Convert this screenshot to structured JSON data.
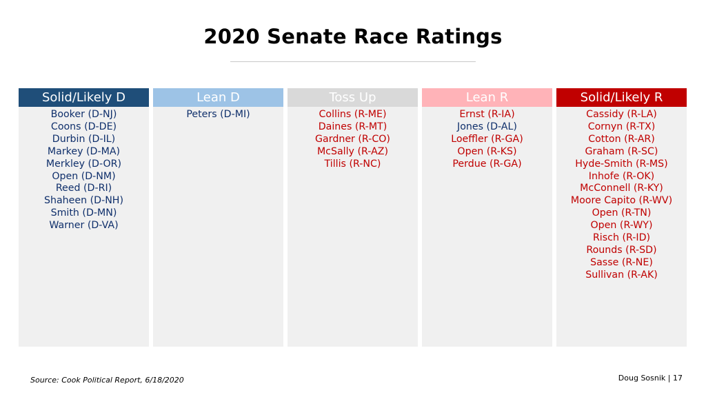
{
  "title": "2020 Senate Race Ratings",
  "colors": {
    "solid_d": "#1f4e79",
    "lean_d": "#9dc3e6",
    "toss_up": "#d9d9d9",
    "lean_r": "#ffb3b8",
    "solid_r": "#c00000",
    "dem_text": "#0f2f6b",
    "rep_text": "#c00000",
    "column_bg": "#f0f0f0"
  },
  "columns": [
    {
      "header": "Solid/Likely D",
      "races": [
        {
          "name": "Booker (D-NJ)",
          "party": "D"
        },
        {
          "name": "Coons (D-DE)",
          "party": "D"
        },
        {
          "name": "Durbin (D-IL)",
          "party": "D"
        },
        {
          "name": "Markey (D-MA)",
          "party": "D"
        },
        {
          "name": "Merkley (D-OR)",
          "party": "D"
        },
        {
          "name": "Open (D-NM)",
          "party": "D"
        },
        {
          "name": "Reed (D-RI)",
          "party": "D"
        },
        {
          "name": "Shaheen (D-NH)",
          "party": "D"
        },
        {
          "name": "Smith (D-MN)",
          "party": "D"
        },
        {
          "name": "Warner (D-VA)",
          "party": "D"
        }
      ]
    },
    {
      "header": "Lean D",
      "races": [
        {
          "name": "Peters (D-MI)",
          "party": "D"
        }
      ]
    },
    {
      "header": "Toss Up",
      "races": [
        {
          "name": "Collins (R-ME)",
          "party": "R"
        },
        {
          "name": "Daines (R-MT)",
          "party": "R"
        },
        {
          "name": "Gardner (R-CO)",
          "party": "R"
        },
        {
          "name": "McSally (R-AZ)",
          "party": "R"
        },
        {
          "name": "Tillis (R-NC)",
          "party": "R"
        }
      ]
    },
    {
      "header": "Lean R",
      "races": [
        {
          "name": "Ernst (R-IA)",
          "party": "R"
        },
        {
          "name": "Jones (D-AL)",
          "party": "D"
        },
        {
          "name": "Loeffler (R-GA)",
          "party": "R"
        },
        {
          "name": "Open (R-KS)",
          "party": "R"
        },
        {
          "name": "Perdue (R-GA)",
          "party": "R"
        }
      ]
    },
    {
      "header": "Solid/Likely R",
      "races": [
        {
          "name": "Cassidy (R-LA)",
          "party": "R"
        },
        {
          "name": "Cornyn (R-TX)",
          "party": "R"
        },
        {
          "name": "Cotton (R-AR)",
          "party": "R"
        },
        {
          "name": "Graham (R-SC)",
          "party": "R"
        },
        {
          "name": "Hyde-Smith (R-MS)",
          "party": "R"
        },
        {
          "name": "Inhofe (R-OK)",
          "party": "R"
        },
        {
          "name": "McConnell (R-KY)",
          "party": "R"
        },
        {
          "name": "Moore Capito (R-WV)",
          "party": "R"
        },
        {
          "name": "Open (R-TN)",
          "party": "R"
        },
        {
          "name": "Open (R-WY)",
          "party": "R"
        },
        {
          "name": "Risch (R-ID)",
          "party": "R"
        },
        {
          "name": "Rounds (R-SD)",
          "party": "R"
        },
        {
          "name": "Sasse (R-NE)",
          "party": "R"
        },
        {
          "name": "Sullivan (R-AK)",
          "party": "R"
        }
      ]
    }
  ],
  "footer": {
    "source": "Source: Cook Political Report, 6/18/2020",
    "author_page": "Doug Sosnik | 17"
  }
}
